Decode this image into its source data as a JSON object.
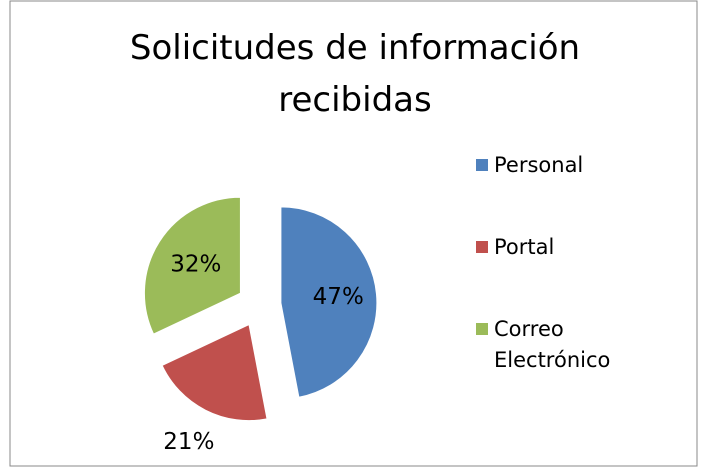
{
  "chart_data": {
    "type": "pie",
    "title": "Solicitudes de información recibidas",
    "categories": [
      "Personal",
      "Portal",
      "Correo Electrónico"
    ],
    "values": [
      47,
      21,
      32
    ],
    "value_labels": [
      "47%",
      "21%",
      "32%"
    ],
    "colors": [
      "#4f81bd",
      "#c0504d",
      "#9bbb59"
    ],
    "legend": "right"
  }
}
